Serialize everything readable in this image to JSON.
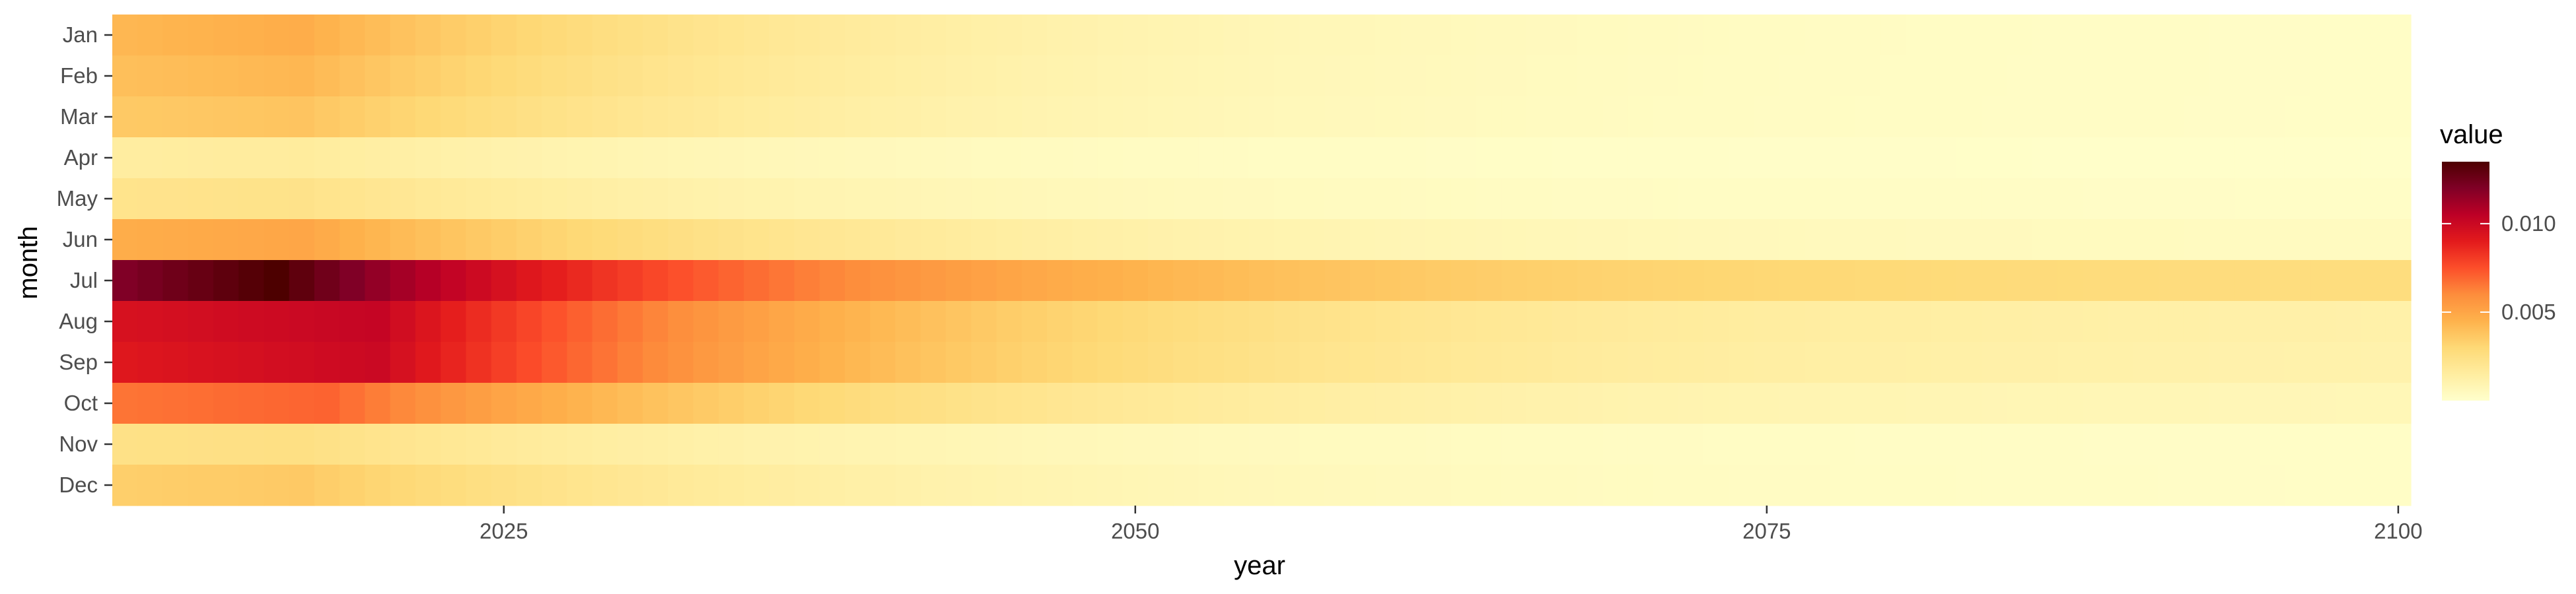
{
  "chart_data": {
    "type": "heatmap",
    "x": {
      "label": "year",
      "range": [
        2010,
        2100
      ],
      "ticks": [
        2025,
        2050,
        2075,
        2100
      ]
    },
    "y": {
      "label": "month",
      "categories": [
        "Jan",
        "Feb",
        "Mar",
        "Apr",
        "May",
        "Jun",
        "Jul",
        "Aug",
        "Sep",
        "Oct",
        "Nov",
        "Dec"
      ]
    },
    "value_range": [
      0,
      0.0135
    ],
    "legend": {
      "title": "value",
      "ticks": [
        0.005,
        0.01
      ],
      "tick_labels": [
        "0.005",
        "0.010"
      ],
      "placement": "right"
    },
    "palette": [
      "#ffffcc",
      "#ffeda0",
      "#fed976",
      "#feb24c",
      "#fd8d3c",
      "#fc4e2a",
      "#e31a1c",
      "#bd0026",
      "#800026",
      "#4d0000"
    ],
    "monthly_profiles": {
      "description_of_values": "value at year 2010, value at peak, peak year, value at 2100",
      "Jan": [
        0.0043,
        0.0047,
        2017,
        0.0002
      ],
      "Feb": [
        0.004,
        0.0043,
        2017,
        0.0002
      ],
      "Mar": [
        0.0036,
        0.0038,
        2017,
        0.0002
      ],
      "Apr": [
        0.0015,
        0.0016,
        2017,
        0.0001
      ],
      "May": [
        0.0022,
        0.0023,
        2017,
        0.0002
      ],
      "Jun": [
        0.0047,
        0.005,
        2017,
        0.0004
      ],
      "Jul": [
        0.012,
        0.0135,
        2016,
        0.0027
      ],
      "Aug": [
        0.0095,
        0.0102,
        2020,
        0.0012
      ],
      "Sep": [
        0.0092,
        0.01,
        2020,
        0.0011
      ],
      "Oct": [
        0.0066,
        0.007,
        2018,
        0.0007
      ],
      "Nov": [
        0.0024,
        0.0025,
        2017,
        0.0002
      ],
      "Dec": [
        0.0034,
        0.0036,
        2017,
        0.0002
      ]
    }
  }
}
